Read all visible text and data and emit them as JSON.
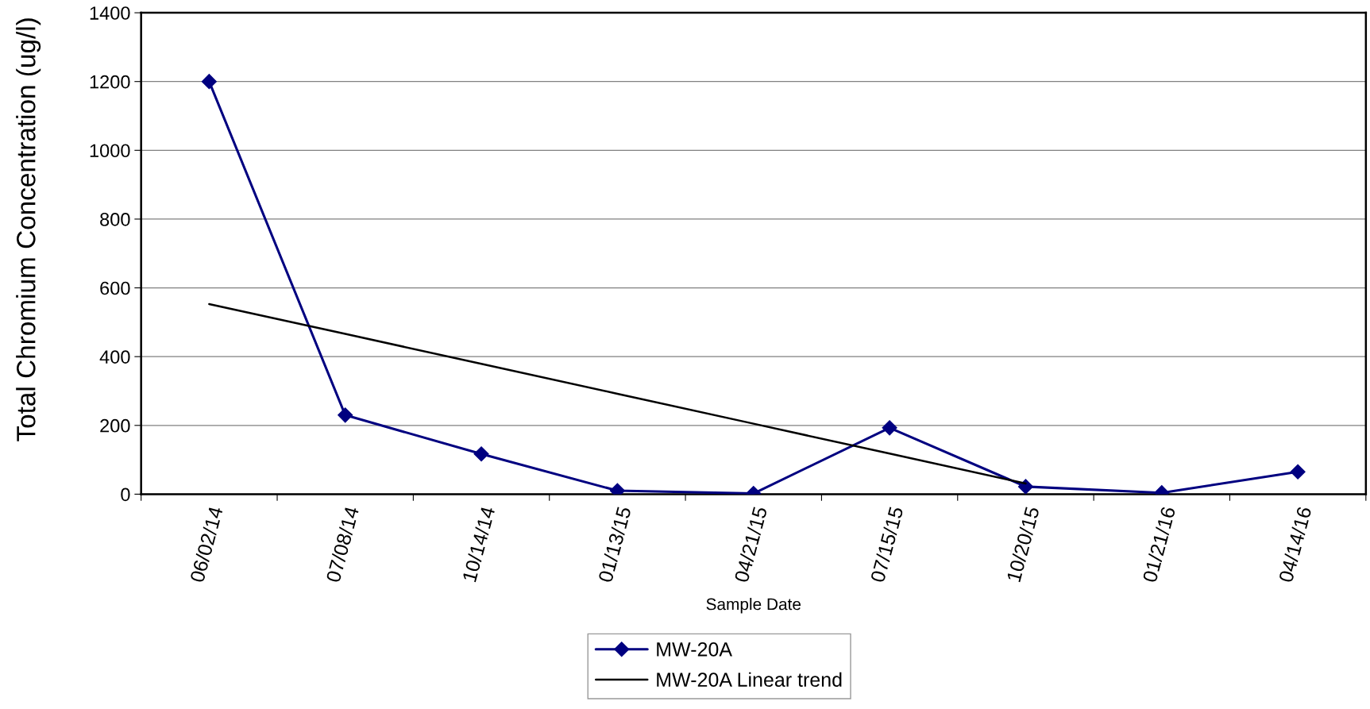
{
  "chart_data": {
    "type": "line",
    "xlabel": "Sample Date",
    "ylabel": "Total Chromium Concentration (ug/l)",
    "categories": [
      "06/02/14",
      "07/08/14",
      "10/14/14",
      "01/13/15",
      "04/21/15",
      "07/15/15",
      "10/20/15",
      "01/21/16",
      "04/14/16"
    ],
    "series": [
      {
        "name": "MW-20A",
        "color": "#000080",
        "marker": "diamond",
        "values": [
          1200,
          230,
          117,
          10,
          2,
          193,
          22,
          4,
          65
        ]
      },
      {
        "name": "MW-20A Linear trend",
        "type": "line",
        "color": "#000000",
        "marker": "none",
        "values": [
          553,
          466,
          379,
          292,
          205,
          118,
          31,
          null,
          null
        ]
      }
    ],
    "ylim": [
      0,
      1400
    ],
    "yticks": [
      0,
      200,
      400,
      600,
      800,
      1000,
      1200,
      1400
    ],
    "grid": "y",
    "legend": "bottom",
    "line_style": "solid"
  }
}
